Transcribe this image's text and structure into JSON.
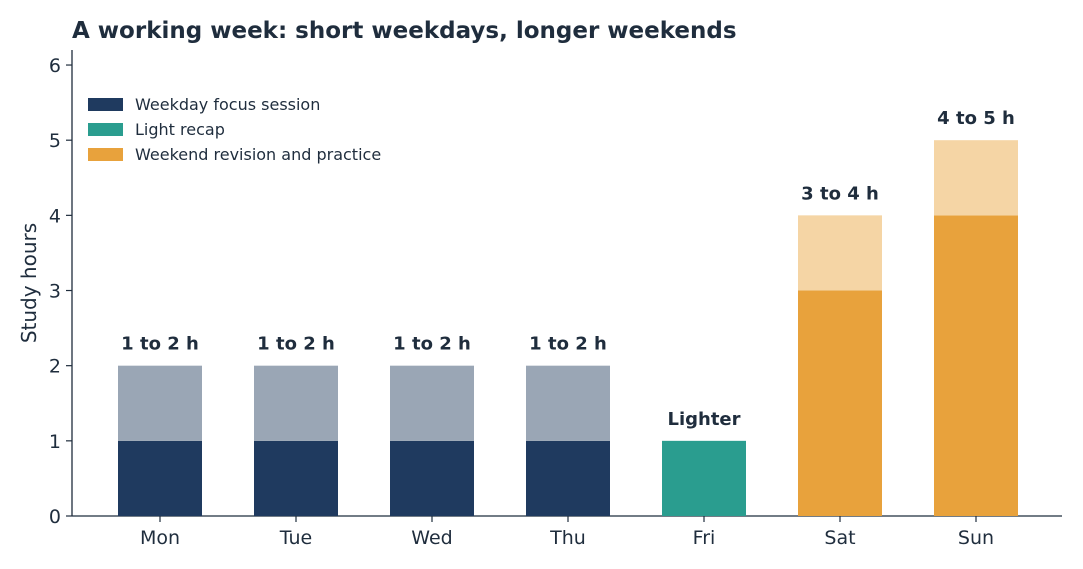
{
  "chart_data": {
    "type": "bar",
    "title": "A working week: short weekdays, longer weekends",
    "ylabel": "Study hours",
    "xlabel": "",
    "ylim": [
      0,
      6.2
    ],
    "yticks": [
      0,
      1,
      2,
      3,
      4,
      5,
      6
    ],
    "grid": false,
    "legend_position": "top-left",
    "categories": [
      "Mon",
      "Tue",
      "Wed",
      "Thu",
      "Fri",
      "Sat",
      "Sun"
    ],
    "bars": [
      {
        "category": "Mon",
        "low": 1,
        "high": 2,
        "type_index": 0,
        "label": "1 to 2 h"
      },
      {
        "category": "Tue",
        "low": 1,
        "high": 2,
        "type_index": 0,
        "label": "1 to 2 h"
      },
      {
        "category": "Wed",
        "low": 1,
        "high": 2,
        "type_index": 0,
        "label": "1 to 2 h"
      },
      {
        "category": "Thu",
        "low": 1,
        "high": 2,
        "type_index": 0,
        "label": "1 to 2 h"
      },
      {
        "category": "Fri",
        "low": 1,
        "high": 1,
        "type_index": 1,
        "label": "Lighter"
      },
      {
        "category": "Sat",
        "low": 3,
        "high": 4,
        "type_index": 2,
        "label": "3 to 4 h"
      },
      {
        "category": "Sun",
        "low": 4,
        "high": 5,
        "type_index": 2,
        "label": "4 to 5 h"
      }
    ],
    "legend": [
      {
        "name": "Weekday focus session",
        "color": "#1f3a5f",
        "range_color": "#9aa6b5"
      },
      {
        "name": "Light recap",
        "color": "#2a9d8f",
        "range_color": "#2a9d8f"
      },
      {
        "name": "Weekend revision and practice",
        "color": "#e8a23c",
        "range_color": "#f5d5a5"
      }
    ],
    "colors": {
      "text": "#1f2d3d",
      "axis": "#1f2d3d"
    }
  }
}
